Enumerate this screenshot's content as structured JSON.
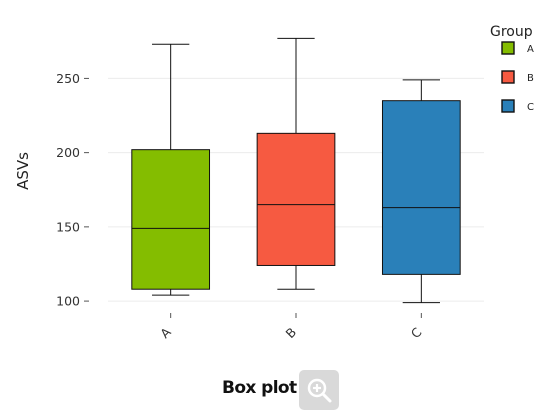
{
  "chart_data": {
    "type": "box",
    "title": "",
    "xlabel": "",
    "ylabel": "ASVs",
    "ylim": [
      94,
      288
    ],
    "yticks": [
      100,
      150,
      200,
      250
    ],
    "grid": true,
    "legend": {
      "title": "Group",
      "placement": "top-right"
    },
    "categories": [
      "A",
      "B",
      "C"
    ],
    "series": [
      {
        "name": "A",
        "color": "#84bd00",
        "min": 104,
        "q1": 108,
        "median": 149,
        "q3": 202,
        "max": 273
      },
      {
        "name": "B",
        "color": "#f65a41",
        "min": 108,
        "q1": 124,
        "median": 165,
        "q3": 213,
        "max": 277
      },
      {
        "name": "C",
        "color": "#2a80b9",
        "min": 99,
        "q1": 118,
        "median": 163,
        "q3": 235,
        "max": 249
      }
    ]
  },
  "caption": {
    "title": "Box plot",
    "zoom_icon": "zoom-in-icon"
  }
}
